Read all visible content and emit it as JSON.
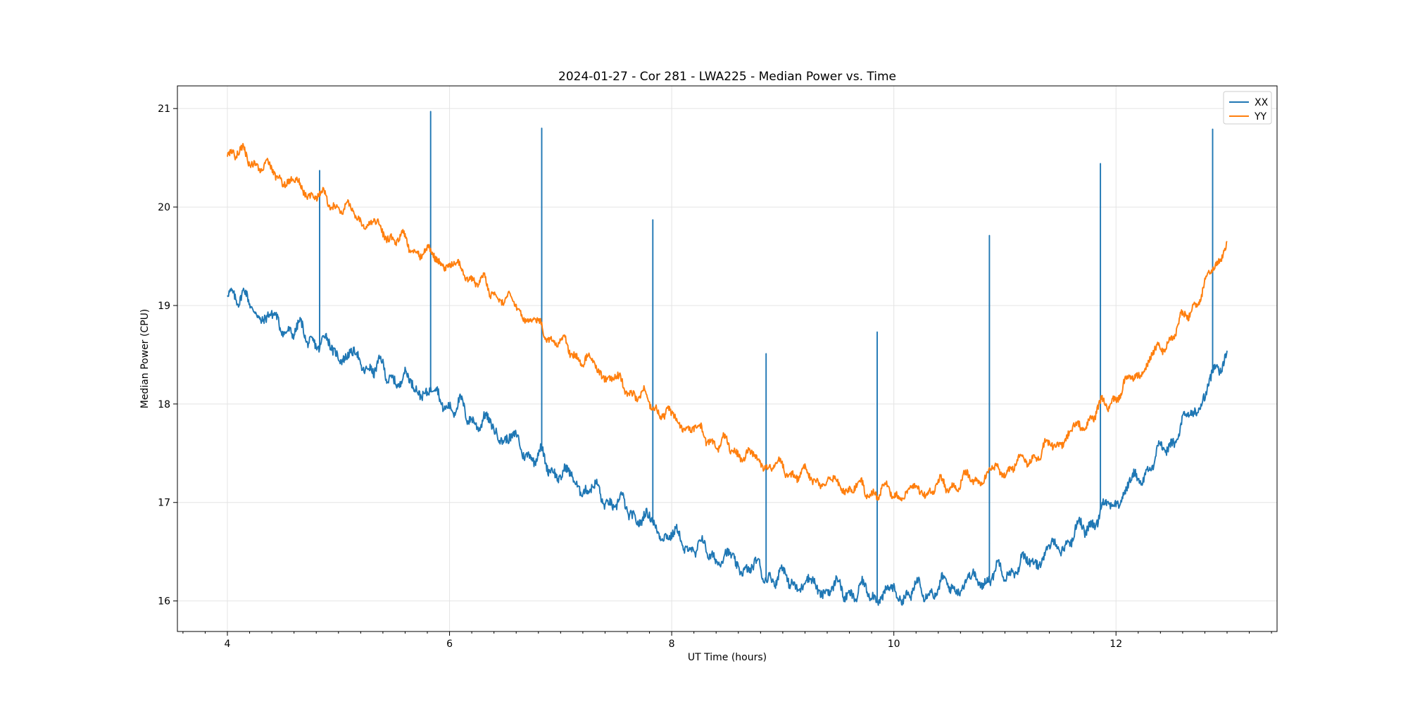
{
  "chart_data": {
    "type": "line",
    "title": "2024-01-27 - Cor 281 - LWA225 - Median Power vs. Time",
    "xlabel": "UT Time (hours)",
    "ylabel": "Median Power (CPU)",
    "xlim": [
      3.55,
      13.45
    ],
    "ylim": [
      15.69,
      21.23
    ],
    "x_ticks": [
      4,
      6,
      8,
      10,
      12
    ],
    "x_tick_labels": [
      "4",
      "6",
      "8",
      "10",
      "12"
    ],
    "y_ticks": [
      16,
      17,
      18,
      19,
      20,
      21
    ],
    "y_tick_labels": [
      "16",
      "17",
      "18",
      "19",
      "20",
      "21"
    ],
    "grid": true,
    "legend": "upper-right",
    "series": [
      {
        "name": "XX",
        "color": "#1f77b4",
        "points": [
          [
            4.0,
            19.15
          ],
          [
            4.2,
            18.95
          ],
          [
            4.4,
            18.8
          ],
          [
            4.6,
            18.7
          ],
          [
            4.8,
            18.6
          ],
          [
            5.0,
            18.48
          ],
          [
            5.2,
            18.38
          ],
          [
            5.4,
            18.28
          ],
          [
            5.6,
            18.18
          ],
          [
            5.8,
            18.08
          ],
          [
            6.0,
            17.95
          ],
          [
            6.2,
            17.82
          ],
          [
            6.4,
            17.7
          ],
          [
            6.6,
            17.55
          ],
          [
            6.8,
            17.4
          ],
          [
            7.0,
            17.25
          ],
          [
            7.2,
            17.12
          ],
          [
            7.4,
            17.0
          ],
          [
            7.6,
            16.88
          ],
          [
            7.8,
            16.75
          ],
          [
            8.0,
            16.6
          ],
          [
            8.2,
            16.5
          ],
          [
            8.4,
            16.42
          ],
          [
            8.6,
            16.33
          ],
          [
            8.8,
            16.25
          ],
          [
            9.0,
            16.18
          ],
          [
            9.2,
            16.12
          ],
          [
            9.4,
            16.08
          ],
          [
            9.6,
            16.05
          ],
          [
            9.8,
            16.03
          ],
          [
            10.0,
            16.02
          ],
          [
            10.2,
            16.05
          ],
          [
            10.4,
            16.08
          ],
          [
            10.6,
            16.12
          ],
          [
            10.8,
            16.18
          ],
          [
            11.0,
            16.25
          ],
          [
            11.2,
            16.33
          ],
          [
            11.4,
            16.45
          ],
          [
            11.6,
            16.6
          ],
          [
            11.8,
            16.78
          ],
          [
            12.0,
            16.98
          ],
          [
            12.2,
            17.2
          ],
          [
            12.4,
            17.45
          ],
          [
            12.6,
            17.72
          ],
          [
            12.8,
            18.05
          ],
          [
            13.0,
            18.5
          ]
        ],
        "spikes": [
          [
            4.83,
            20.37
          ],
          [
            5.83,
            20.97
          ],
          [
            6.83,
            20.8
          ],
          [
            7.83,
            19.87
          ],
          [
            8.85,
            18.51
          ],
          [
            9.85,
            18.73
          ],
          [
            10.86,
            19.71
          ],
          [
            11.86,
            20.44
          ],
          [
            12.87,
            20.79
          ]
        ]
      },
      {
        "name": "YY",
        "color": "#ff7f0e",
        "points": [
          [
            4.0,
            20.55
          ],
          [
            4.2,
            20.45
          ],
          [
            4.4,
            20.32
          ],
          [
            4.6,
            20.2
          ],
          [
            4.8,
            20.08
          ],
          [
            5.0,
            19.97
          ],
          [
            5.2,
            19.85
          ],
          [
            5.4,
            19.72
          ],
          [
            5.6,
            19.6
          ],
          [
            5.8,
            19.48
          ],
          [
            6.0,
            19.38
          ],
          [
            6.2,
            19.25
          ],
          [
            6.4,
            19.1
          ],
          [
            6.6,
            18.95
          ],
          [
            6.8,
            18.75
          ],
          [
            7.0,
            18.58
          ],
          [
            7.2,
            18.42
          ],
          [
            7.4,
            18.27
          ],
          [
            7.6,
            18.12
          ],
          [
            7.8,
            17.98
          ],
          [
            8.0,
            17.82
          ],
          [
            8.2,
            17.7
          ],
          [
            8.4,
            17.58
          ],
          [
            8.6,
            17.48
          ],
          [
            8.8,
            17.38
          ],
          [
            9.0,
            17.3
          ],
          [
            9.2,
            17.23
          ],
          [
            9.4,
            17.17
          ],
          [
            9.6,
            17.12
          ],
          [
            9.8,
            17.08
          ],
          [
            10.0,
            17.06
          ],
          [
            10.2,
            17.08
          ],
          [
            10.4,
            17.12
          ],
          [
            10.6,
            17.17
          ],
          [
            10.8,
            17.23
          ],
          [
            11.0,
            17.3
          ],
          [
            11.2,
            17.4
          ],
          [
            11.4,
            17.52
          ],
          [
            11.6,
            17.67
          ],
          [
            11.8,
            17.85
          ],
          [
            12.0,
            18.05
          ],
          [
            12.2,
            18.28
          ],
          [
            12.4,
            18.52
          ],
          [
            12.6,
            18.8
          ],
          [
            12.8,
            19.15
          ],
          [
            13.0,
            19.62
          ]
        ]
      }
    ]
  }
}
